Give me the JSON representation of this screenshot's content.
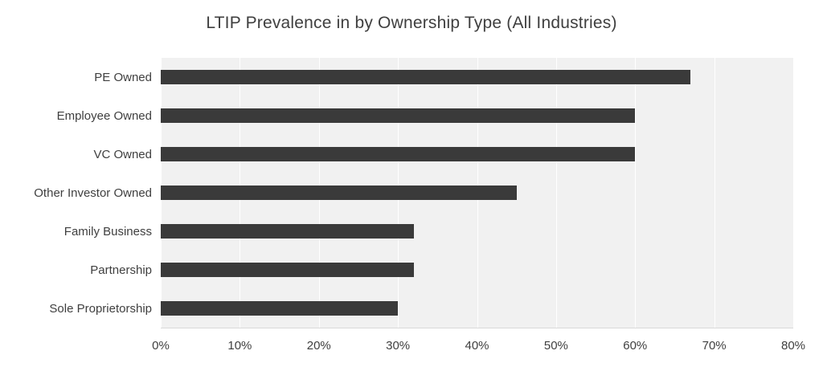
{
  "chart_data": {
    "type": "bar",
    "orientation": "horizontal",
    "title": "LTIP Prevalence in by Ownership Type (All Industries)",
    "categories": [
      "PE Owned",
      "Employee Owned",
      "VC Owned",
      "Other Investor Owned",
      "Family Business",
      "Partnership",
      "Sole Proprietorship"
    ],
    "values": [
      67,
      60,
      60,
      45,
      32,
      32,
      30
    ],
    "value_unit": "%",
    "xlim": [
      0,
      80
    ],
    "x_tick_values": [
      0,
      10,
      20,
      30,
      40,
      50,
      60,
      70,
      80
    ],
    "x_tick_labels": [
      "0%",
      "10%",
      "20%",
      "30%",
      "40%",
      "50%",
      "60%",
      "70%",
      "80%"
    ],
    "grid": "vertical",
    "legend": "none",
    "colors": {
      "bar": "#3a3a3a",
      "plot_background": "#f1f1f1",
      "gridline": "#ffffff",
      "text": "#3f3f3f",
      "axis_line": "#d9d9d9"
    }
  }
}
